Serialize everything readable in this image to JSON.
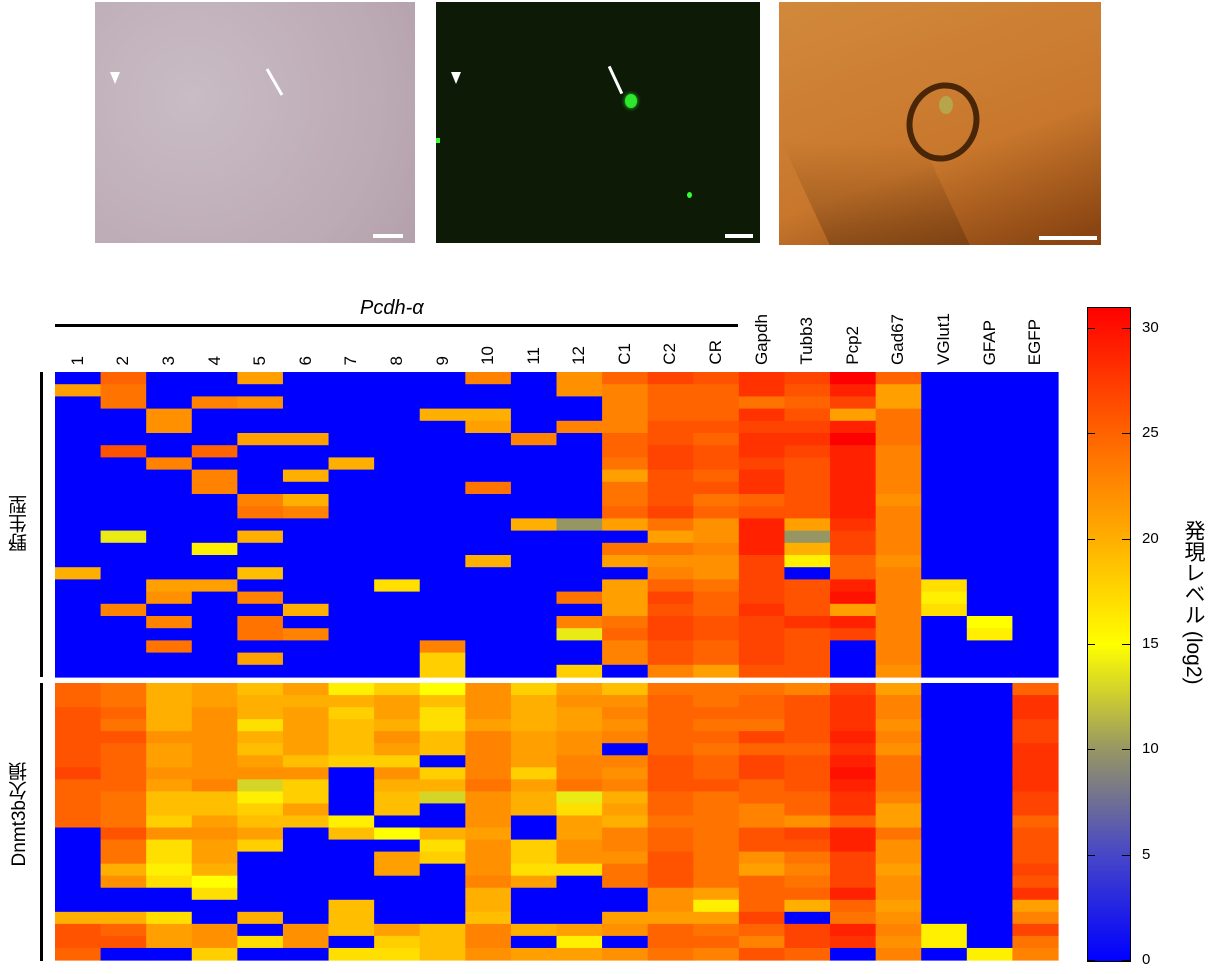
{
  "chart_data": {
    "type": "heatmap",
    "column_group_label": "Pcdh-α",
    "columns": [
      "1",
      "2",
      "3",
      "4",
      "5",
      "6",
      "7",
      "8",
      "9",
      "10",
      "11",
      "12",
      "C1",
      "C2",
      "CR",
      "Gapdh",
      "Tubb3",
      "Pcp2",
      "Gad67",
      "VGlut1",
      "GFAP",
      "EGFP"
    ],
    "colorbar": {
      "title": "発現レベル (log2)",
      "range": [
        0,
        31
      ],
      "ticks": [
        0,
        5,
        10,
        15,
        20,
        25,
        30
      ]
    },
    "groups": [
      {
        "label": "野生型",
        "rows": [
          [
            0,
            25,
            0,
            0,
            21,
            0,
            0,
            0,
            0,
            23,
            0,
            22,
            25,
            27,
            26,
            28,
            27,
            31,
            25,
            0,
            0,
            0
          ],
          [
            21,
            24,
            0,
            0,
            0,
            0,
            0,
            0,
            0,
            0,
            0,
            22,
            23,
            25,
            25,
            28,
            26,
            29,
            21,
            0,
            0,
            0
          ],
          [
            0,
            24,
            0,
            23,
            22,
            0,
            0,
            0,
            0,
            0,
            0,
            0,
            23,
            25,
            25,
            24,
            25,
            27,
            21,
            0,
            0,
            0
          ],
          [
            0,
            0,
            22,
            0,
            0,
            0,
            0,
            0,
            20,
            20,
            0,
            0,
            23,
            25,
            25,
            28,
            26,
            21,
            24,
            0,
            0,
            0
          ],
          [
            0,
            0,
            22,
            0,
            0,
            0,
            0,
            0,
            0,
            21,
            0,
            23,
            23,
            26,
            26,
            27,
            27,
            29,
            24,
            0,
            0,
            0
          ],
          [
            0,
            0,
            0,
            0,
            21,
            21,
            0,
            0,
            0,
            0,
            23,
            0,
            25,
            26,
            25,
            28,
            28,
            31,
            24,
            0,
            0,
            0
          ],
          [
            0,
            26,
            0,
            25,
            0,
            0,
            0,
            0,
            0,
            0,
            0,
            0,
            25,
            27,
            26,
            28,
            27,
            29,
            23,
            0,
            0,
            0
          ],
          [
            0,
            0,
            23,
            0,
            0,
            0,
            20,
            0,
            0,
            0,
            0,
            0,
            24,
            27,
            26,
            27,
            26,
            29,
            23,
            0,
            0,
            0
          ],
          [
            0,
            0,
            0,
            23,
            0,
            20,
            0,
            0,
            0,
            0,
            0,
            0,
            21,
            26,
            25,
            28,
            26,
            29,
            23,
            0,
            0,
            0
          ],
          [
            0,
            0,
            0,
            23,
            0,
            0,
            0,
            0,
            0,
            24,
            0,
            0,
            24,
            26,
            26,
            28,
            26,
            29,
            23,
            0,
            0,
            0
          ],
          [
            0,
            0,
            0,
            0,
            23,
            20,
            0,
            0,
            0,
            0,
            0,
            0,
            24,
            26,
            24,
            25,
            26,
            29,
            22,
            0,
            0,
            0
          ],
          [
            0,
            0,
            0,
            0,
            24,
            23,
            0,
            0,
            0,
            0,
            0,
            0,
            25,
            27,
            25,
            26,
            26,
            29,
            23,
            0,
            0,
            0
          ],
          [
            0,
            0,
            0,
            0,
            0,
            0,
            0,
            0,
            0,
            0,
            20,
            10,
            21,
            24,
            22,
            29,
            21,
            28,
            23,
            0,
            0,
            0
          ],
          [
            0,
            14,
            0,
            0,
            20,
            0,
            0,
            0,
            0,
            0,
            0,
            0,
            0,
            21,
            22,
            29,
            10,
            27,
            23,
            0,
            0,
            0
          ],
          [
            0,
            0,
            0,
            16,
            0,
            0,
            0,
            0,
            0,
            0,
            0,
            0,
            24,
            24,
            23,
            29,
            20,
            27,
            23,
            0,
            0,
            0
          ],
          [
            0,
            0,
            0,
            0,
            0,
            0,
            0,
            0,
            0,
            20,
            0,
            0,
            21,
            22,
            22,
            27,
            16,
            25,
            22,
            0,
            0,
            0
          ],
          [
            20,
            0,
            0,
            0,
            19,
            0,
            0,
            0,
            0,
            0,
            0,
            0,
            0,
            23,
            22,
            27,
            0,
            25,
            23,
            0,
            0,
            0
          ],
          [
            0,
            0,
            21,
            21,
            0,
            0,
            0,
            17,
            0,
            0,
            0,
            0,
            21,
            25,
            24,
            27,
            26,
            29,
            23,
            17,
            0,
            0
          ],
          [
            0,
            0,
            22,
            0,
            23,
            0,
            0,
            0,
            0,
            0,
            0,
            24,
            21,
            27,
            25,
            27,
            26,
            30,
            23,
            16,
            0,
            0
          ],
          [
            0,
            23,
            0,
            0,
            0,
            20,
            0,
            0,
            0,
            0,
            0,
            0,
            21,
            26,
            25,
            28,
            26,
            21,
            23,
            17,
            0,
            0
          ],
          [
            0,
            0,
            23,
            0,
            24,
            0,
            0,
            0,
            0,
            0,
            0,
            23,
            24,
            27,
            26,
            27,
            28,
            29,
            23,
            0,
            15,
            0
          ],
          [
            0,
            0,
            0,
            0,
            24,
            23,
            0,
            0,
            0,
            0,
            0,
            14,
            25,
            27,
            26,
            27,
            26,
            27,
            23,
            0,
            16,
            0
          ],
          [
            0,
            0,
            24,
            0,
            0,
            0,
            0,
            0,
            23,
            0,
            0,
            0,
            23,
            26,
            25,
            27,
            26,
            0,
            23,
            0,
            0,
            0
          ],
          [
            0,
            0,
            0,
            0,
            21,
            0,
            0,
            0,
            18,
            0,
            0,
            0,
            23,
            26,
            25,
            27,
            26,
            0,
            23,
            0,
            0,
            0
          ],
          [
            0,
            0,
            0,
            0,
            0,
            0,
            0,
            0,
            18,
            0,
            0,
            18,
            0,
            23,
            21,
            26,
            26,
            0,
            22,
            0,
            0,
            0
          ]
        ]
      },
      {
        "label": "Dnmt3b欠損",
        "rows": [
          [
            25,
            24,
            20,
            21,
            19,
            21,
            16,
            18,
            15,
            22,
            18,
            21,
            19,
            24,
            24,
            24,
            23,
            27,
            21,
            0,
            0,
            25
          ],
          [
            25,
            24,
            20,
            21,
            20,
            20,
            20,
            21,
            19,
            22,
            20,
            22,
            22,
            25,
            24,
            25,
            26,
            28,
            23,
            0,
            0,
            28
          ],
          [
            26,
            25,
            20,
            22,
            20,
            21,
            18,
            21,
            17,
            22,
            20,
            21,
            23,
            25,
            25,
            25,
            26,
            28,
            23,
            0,
            0,
            28
          ],
          [
            26,
            24,
            20,
            22,
            17,
            21,
            19,
            20,
            17,
            21,
            20,
            21,
            22,
            25,
            24,
            24,
            26,
            28,
            22,
            0,
            0,
            27
          ],
          [
            26,
            26,
            22,
            22,
            20,
            21,
            19,
            22,
            19,
            23,
            21,
            22,
            23,
            25,
            25,
            27,
            26,
            29,
            23,
            0,
            0,
            27
          ],
          [
            26,
            25,
            21,
            22,
            19,
            21,
            19,
            21,
            19,
            23,
            21,
            22,
            0,
            25,
            24,
            25,
            25,
            28,
            22,
            0,
            0,
            28
          ],
          [
            26,
            25,
            21,
            22,
            21,
            19,
            18,
            18,
            0,
            23,
            21,
            23,
            23,
            26,
            25,
            27,
            26,
            29,
            24,
            0,
            0,
            28
          ],
          [
            27,
            25,
            22,
            22,
            22,
            22,
            0,
            22,
            18,
            23,
            18,
            23,
            22,
            26,
            25,
            27,
            26,
            30,
            24,
            0,
            0,
            28
          ],
          [
            25,
            25,
            21,
            23,
            13,
            18,
            0,
            20,
            20,
            24,
            21,
            24,
            23,
            26,
            26,
            25,
            26,
            29,
            24,
            0,
            0,
            28
          ],
          [
            25,
            24,
            19,
            19,
            16,
            18,
            0,
            19,
            13,
            22,
            20,
            14,
            20,
            25,
            24,
            25,
            25,
            28,
            23,
            0,
            0,
            27
          ],
          [
            25,
            24,
            19,
            19,
            18,
            21,
            0,
            19,
            0,
            22,
            20,
            17,
            21,
            25,
            24,
            23,
            25,
            28,
            21,
            0,
            0,
            27
          ],
          [
            25,
            24,
            18,
            21,
            19,
            19,
            16,
            0,
            0,
            22,
            0,
            21,
            20,
            24,
            24,
            23,
            22,
            25,
            21,
            0,
            0,
            25
          ],
          [
            0,
            26,
            22,
            22,
            21,
            0,
            19,
            15,
            20,
            21,
            0,
            21,
            23,
            25,
            24,
            26,
            27,
            29,
            24,
            0,
            0,
            26
          ],
          [
            0,
            24,
            17,
            21,
            18,
            0,
            0,
            0,
            17,
            22,
            18,
            22,
            23,
            25,
            24,
            26,
            26,
            29,
            22,
            0,
            0,
            26
          ],
          [
            0,
            24,
            17,
            21,
            0,
            0,
            0,
            21,
            18,
            22,
            18,
            22,
            22,
            26,
            24,
            22,
            24,
            27,
            22,
            0,
            0,
            26
          ],
          [
            0,
            20,
            16,
            20,
            0,
            0,
            0,
            21,
            0,
            22,
            17,
            17,
            24,
            26,
            24,
            21,
            23,
            27,
            21,
            0,
            0,
            27
          ],
          [
            0,
            22,
            17,
            15,
            0,
            0,
            0,
            0,
            0,
            23,
            21,
            0,
            24,
            26,
            24,
            25,
            24,
            27,
            22,
            0,
            0,
            26
          ],
          [
            0,
            0,
            0,
            17,
            0,
            0,
            0,
            0,
            0,
            20,
            0,
            0,
            0,
            22,
            21,
            25,
            25,
            29,
            22,
            0,
            0,
            28
          ],
          [
            0,
            0,
            0,
            0,
            0,
            0,
            19,
            0,
            0,
            20,
            0,
            0,
            0,
            22,
            16,
            25,
            20,
            25,
            21,
            0,
            0,
            21
          ],
          [
            20,
            20,
            17,
            0,
            20,
            0,
            19,
            0,
            0,
            19,
            0,
            0,
            21,
            21,
            21,
            27,
            0,
            24,
            22,
            0,
            0,
            23
          ],
          [
            26,
            25,
            21,
            22,
            0,
            22,
            19,
            21,
            19,
            23,
            20,
            21,
            22,
            25,
            24,
            25,
            27,
            29,
            23,
            16,
            0,
            27
          ],
          [
            26,
            26,
            21,
            22,
            17,
            22,
            0,
            18,
            19,
            23,
            0,
            16,
            0,
            25,
            25,
            23,
            27,
            28,
            22,
            16,
            0,
            24
          ],
          [
            25,
            0,
            0,
            18,
            0,
            0,
            17,
            17,
            19,
            22,
            21,
            21,
            22,
            24,
            23,
            26,
            25,
            0,
            23,
            0,
            16,
            23
          ]
        ]
      }
    ]
  },
  "colors": {
    "low": "#0000ff",
    "mid": "#969664",
    "yellow": "#ffff00",
    "high": "#ff0000"
  }
}
